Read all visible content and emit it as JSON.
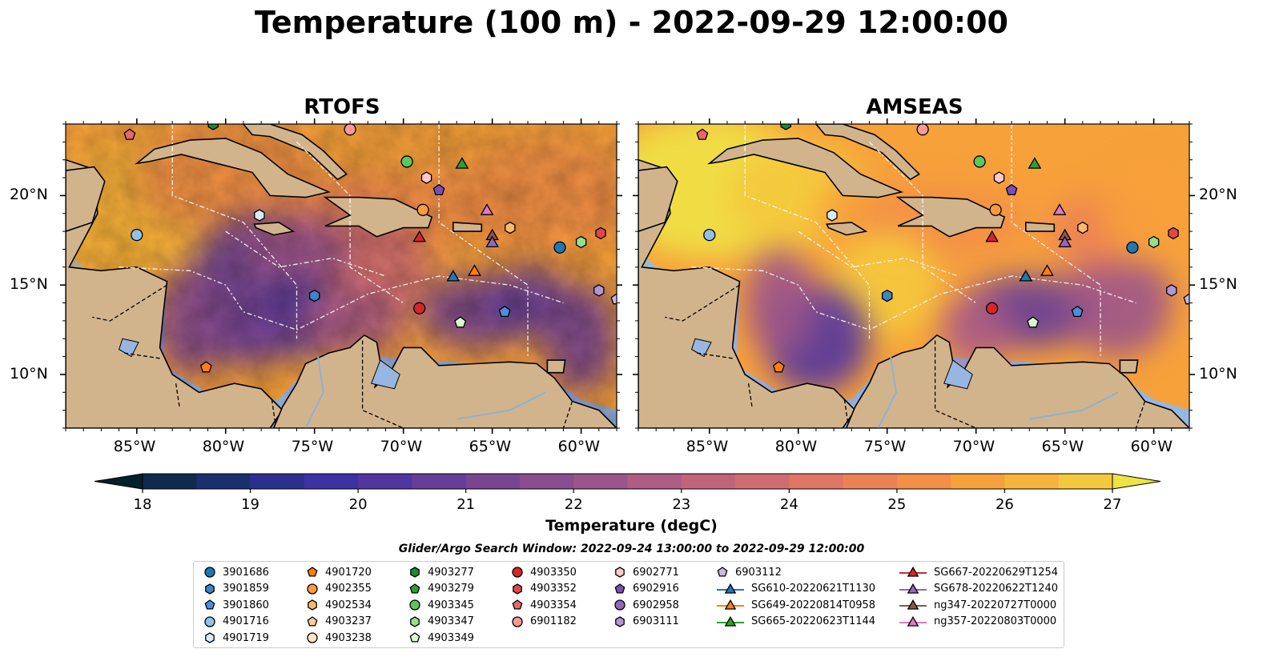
{
  "title": "Temperature (100 m) - 2022-09-29 12:00:00",
  "panels": [
    {
      "title": "RTOFS",
      "variant": "rtofs"
    },
    {
      "title": "AMSEAS",
      "variant": "amseas"
    }
  ],
  "map": {
    "lon_range": [
      -89,
      -58
    ],
    "lat_range": [
      7,
      24
    ],
    "lon_ticks": [
      {
        "value": -85,
        "label": "85°W"
      },
      {
        "value": -80,
        "label": "80°W"
      },
      {
        "value": -75,
        "label": "75°W"
      },
      {
        "value": -70,
        "label": "70°W"
      },
      {
        "value": -65,
        "label": "65°W"
      },
      {
        "value": -60,
        "label": "60°W"
      }
    ],
    "lat_ticks": [
      {
        "value": 20,
        "label": "20°N"
      },
      {
        "value": 15,
        "label": "15°N"
      },
      {
        "value": 10,
        "label": "10°N"
      }
    ],
    "land_color": "#d2b48c",
    "ocean_color": "#97b6e1"
  },
  "colorbar": {
    "min": 18,
    "max": 27,
    "step": 0.5,
    "label": "Temperature (degC)",
    "ticks": [
      "18",
      "19",
      "20",
      "21",
      "22",
      "23",
      "24",
      "25",
      "26",
      "27"
    ],
    "colors": [
      "#04202c",
      "#0f2a4f",
      "#1b2f6e",
      "#2b3090",
      "#3d31a4",
      "#52359f",
      "#663d98",
      "#784592",
      "#8a4d8f",
      "#9c558a",
      "#ae5d84",
      "#c0647c",
      "#d16d72",
      "#e07665",
      "#ec8156",
      "#f38f47",
      "#f7a13b",
      "#f8b43a",
      "#f5c93d",
      "#eee346"
    ]
  },
  "legend": {
    "title": "Glider/Argo Search Window: 2022-09-24 13:00:00 to 2022-09-29 12:00:00",
    "columns": [
      [
        {
          "label": "3901686",
          "marker": "circle",
          "color": "#1f77b4"
        },
        {
          "label": "3901859",
          "marker": "hexagon",
          "color": "#3d85c6"
        },
        {
          "label": "3901860",
          "marker": "pentagon",
          "color": "#4a90d9"
        },
        {
          "label": "4901716",
          "marker": "circle",
          "color": "#8fc3e8"
        },
        {
          "label": "4901719",
          "marker": "hexagon",
          "color": "#d6eaf8"
        }
      ],
      [
        {
          "label": "4901720",
          "marker": "pentagon",
          "color": "#ff7f0e"
        },
        {
          "label": "4902355",
          "marker": "circle",
          "color": "#ff9a3c"
        },
        {
          "label": "4902534",
          "marker": "hexagon",
          "color": "#ffb86c"
        },
        {
          "label": "4903237",
          "marker": "pentagon",
          "color": "#ffcc99"
        },
        {
          "label": "4903238",
          "marker": "circle",
          "color": "#ffe4c4"
        }
      ],
      [
        {
          "label": "4903277",
          "marker": "hexagon",
          "color": "#1b8a2e"
        },
        {
          "label": "4903279",
          "marker": "pentagon",
          "color": "#2ca02c"
        },
        {
          "label": "4903345",
          "marker": "circle",
          "color": "#5cc85c"
        },
        {
          "label": "4903347",
          "marker": "hexagon",
          "color": "#98df8a"
        },
        {
          "label": "4903349",
          "marker": "pentagon",
          "color": "#d9f7d0"
        }
      ],
      [
        {
          "label": "4903350",
          "marker": "circle",
          "color": "#d62728"
        },
        {
          "label": "4903352",
          "marker": "hexagon",
          "color": "#e04848"
        },
        {
          "label": "4903354",
          "marker": "pentagon",
          "color": "#e8676a"
        },
        {
          "label": "6901182",
          "marker": "circle",
          "color": "#ff9896"
        }
      ],
      [
        {
          "label": "6902771",
          "marker": "hexagon",
          "color": "#ffc9c8"
        },
        {
          "label": "6902916",
          "marker": "pentagon",
          "color": "#7b4fb5"
        },
        {
          "label": "6902958",
          "marker": "circle",
          "color": "#9467bd"
        },
        {
          "label": "6903111",
          "marker": "hexagon",
          "color": "#b196d4"
        }
      ],
      [
        {
          "label": "6903112",
          "marker": "pentagon",
          "color": "#cbb8e6"
        },
        {
          "label": "SG610-20220621T1130",
          "marker": "triangle",
          "color": "#1f77b4",
          "line": true
        },
        {
          "label": "SG649-20220814T0958",
          "marker": "triangle",
          "color": "#ff7f0e",
          "line": true
        },
        {
          "label": "SG665-20220623T1144",
          "marker": "triangle",
          "color": "#2ca02c",
          "line": true
        }
      ],
      [
        {
          "label": "SG667-20220629T1254",
          "marker": "triangle",
          "color": "#d62728",
          "line": true
        },
        {
          "label": "SG678-20220622T1240",
          "marker": "triangle",
          "color": "#9467bd",
          "line": true
        },
        {
          "label": "ng347-20220727T0000",
          "marker": "triangle",
          "color": "#8c564b",
          "line": true
        },
        {
          "label": "ng357-20220803T0000",
          "marker": "triangle",
          "color": "#e377c2",
          "line": true
        }
      ]
    ]
  },
  "markers": [
    {
      "id": "4903354",
      "lon": -85.4,
      "lat": 23.4,
      "marker": "pentagon",
      "color": "#e8676a"
    },
    {
      "id": "4903277",
      "lon": -80.7,
      "lat": 24.0,
      "marker": "hexagon",
      "color": "#1b8a2e"
    },
    {
      "id": "6901182",
      "lon": -73.0,
      "lat": 23.7,
      "marker": "circle",
      "color": "#ff9896"
    },
    {
      "id": "4903345",
      "lon": -69.8,
      "lat": 21.9,
      "marker": "circle",
      "color": "#5cc85c"
    },
    {
      "id": "SG665-20220623T1144",
      "lon": -66.7,
      "lat": 21.8,
      "marker": "triangle",
      "color": "#2ca02c"
    },
    {
      "id": "6902771",
      "lon": -68.7,
      "lat": 21.0,
      "marker": "hexagon",
      "color": "#ffc9c8"
    },
    {
      "id": "6902916",
      "lon": -68.0,
      "lat": 20.3,
      "marker": "pentagon",
      "color": "#7b4fb5"
    },
    {
      "id": "4902355",
      "lon": -68.9,
      "lat": 19.2,
      "marker": "circle",
      "color": "#ff9a3c"
    },
    {
      "id": "4901719",
      "lon": -78.1,
      "lat": 18.9,
      "marker": "hexagon",
      "color": "#d6eaf8"
    },
    {
      "id": "4901716",
      "lon": -85.0,
      "lat": 17.8,
      "marker": "circle",
      "color": "#8fc3e8"
    },
    {
      "id": "SG667-20220629T1254",
      "lon": -69.1,
      "lat": 17.7,
      "marker": "triangle",
      "color": "#d62728"
    },
    {
      "id": "ng357-20220803T0000",
      "lon": -65.3,
      "lat": 19.2,
      "marker": "triangle",
      "color": "#e377c2"
    },
    {
      "id": "4902534",
      "lon": -64.0,
      "lat": 18.2,
      "marker": "hexagon",
      "color": "#ffb86c"
    },
    {
      "id": "ng347-20220727T0000",
      "lon": -65.0,
      "lat": 17.8,
      "marker": "triangle",
      "color": "#8c564b"
    },
    {
      "id": "SG678-20220622T1240",
      "lon": -65.0,
      "lat": 17.4,
      "marker": "triangle",
      "color": "#9467bd"
    },
    {
      "id": "3901686",
      "lon": -61.2,
      "lat": 17.1,
      "marker": "circle",
      "color": "#1f77b4"
    },
    {
      "id": "4903347",
      "lon": -60.0,
      "lat": 17.4,
      "marker": "hexagon",
      "color": "#98df8a"
    },
    {
      "id": "4903352",
      "lon": -58.9,
      "lat": 17.9,
      "marker": "hexagon",
      "color": "#e04848"
    },
    {
      "id": "SG649-20220814T0958",
      "lon": -66.0,
      "lat": 15.8,
      "marker": "triangle",
      "color": "#ff7f0e"
    },
    {
      "id": "SG610-20220621T1130",
      "lon": -67.2,
      "lat": 15.5,
      "marker": "triangle",
      "color": "#1f77b4"
    },
    {
      "id": "3901859",
      "lon": -75.0,
      "lat": 14.4,
      "marker": "hexagon",
      "color": "#3d85c6"
    },
    {
      "id": "6903111",
      "lon": -59.0,
      "lat": 14.7,
      "marker": "hexagon",
      "color": "#b196d4"
    },
    {
      "id": "6903112",
      "lon": -58.0,
      "lat": 14.2,
      "marker": "pentagon",
      "color": "#cbb8e6"
    },
    {
      "id": "4903350",
      "lon": -69.1,
      "lat": 13.7,
      "marker": "circle",
      "color": "#d62728"
    },
    {
      "id": "3901860",
      "lon": -64.3,
      "lat": 13.5,
      "marker": "pentagon",
      "color": "#4a90d9"
    },
    {
      "id": "4903349",
      "lon": -66.8,
      "lat": 12.9,
      "marker": "pentagon",
      "color": "#d9f7d0"
    },
    {
      "id": "4901720",
      "lon": -81.1,
      "lat": 10.4,
      "marker": "pentagon",
      "color": "#ff7f0e"
    }
  ]
}
